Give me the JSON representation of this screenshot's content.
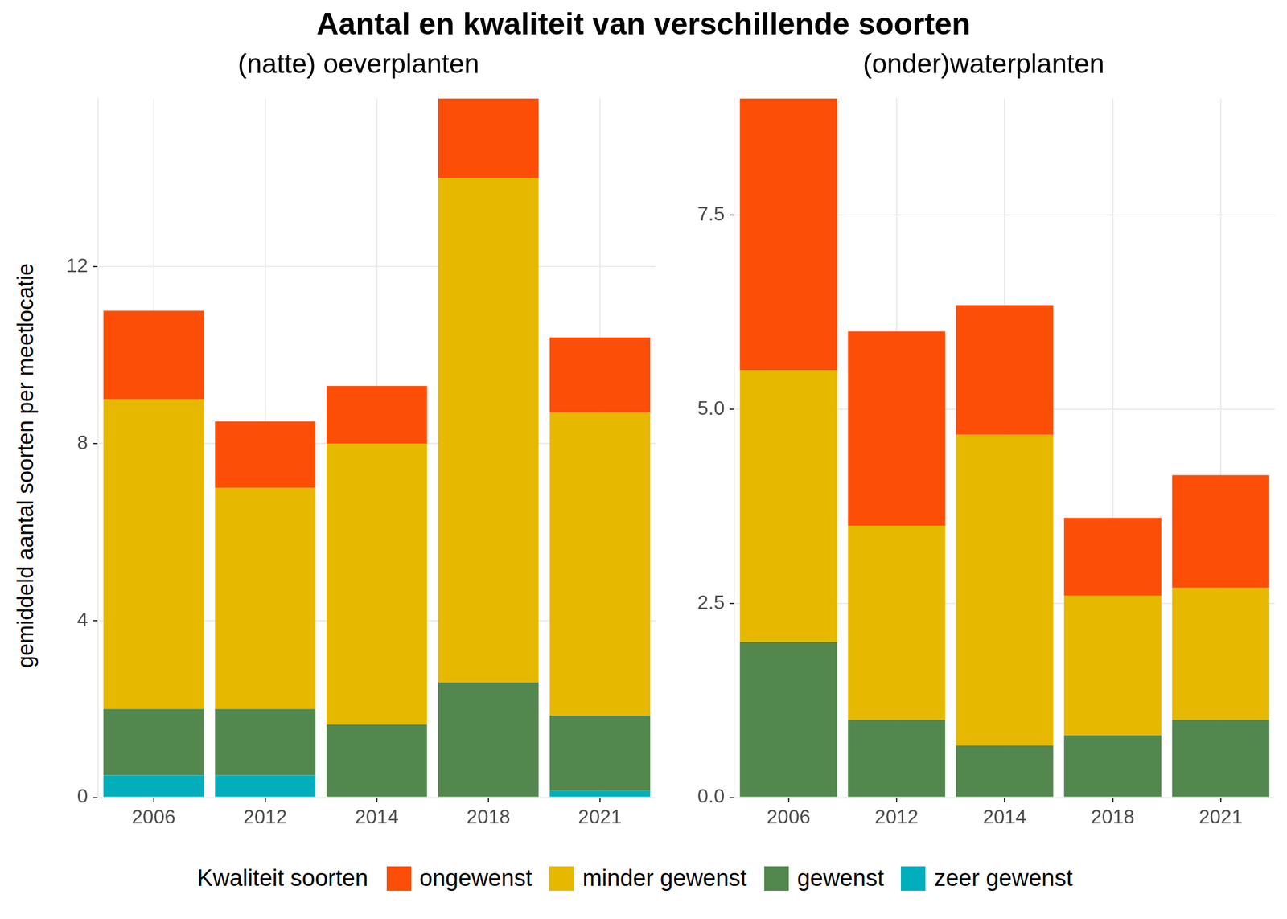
{
  "title": "Aantal en kwaliteit van verschillende soorten",
  "y_label": "gemiddeld aantal soorten per meetlocatie",
  "legend_title": "Kwaliteit soorten",
  "chart_data": [
    {
      "type": "bar",
      "title": "(natte) oeverplanten",
      "stacked": true,
      "grid": true,
      "categories": [
        "2006",
        "2012",
        "2014",
        "2018",
        "2021"
      ],
      "series": [
        {
          "name": "zeer gewenst",
          "color": "#00AFBB",
          "values": [
            0.5,
            0.5,
            0,
            0,
            0.15
          ]
        },
        {
          "name": "gewenst",
          "color": "#52874E",
          "values": [
            1.5,
            1.5,
            1.65,
            2.6,
            1.7
          ]
        },
        {
          "name": "minder gewenst",
          "color": "#E7B800",
          "values": [
            7.0,
            5.0,
            6.35,
            11.4,
            6.85
          ]
        },
        {
          "name": "ongewenst",
          "color": "#FC4E07",
          "values": [
            2.0,
            1.5,
            1.3,
            1.8,
            1.7
          ]
        }
      ],
      "ylim": [
        0,
        15.8
      ],
      "yticks": [
        0,
        4,
        8,
        12
      ]
    },
    {
      "type": "bar",
      "title": "(onder)waterplanten",
      "stacked": true,
      "grid": true,
      "categories": [
        "2006",
        "2012",
        "2014",
        "2018",
        "2021"
      ],
      "series": [
        {
          "name": "zeer gewenst",
          "color": "#00AFBB",
          "values": [
            0,
            0,
            0,
            0,
            0
          ]
        },
        {
          "name": "gewenst",
          "color": "#52874E",
          "values": [
            2.0,
            1.0,
            0.67,
            0.8,
            1.0
          ]
        },
        {
          "name": "minder gewenst",
          "color": "#E7B800",
          "values": [
            3.5,
            2.5,
            4.0,
            1.8,
            1.7
          ]
        },
        {
          "name": "ongewenst",
          "color": "#FC4E07",
          "values": [
            3.5,
            2.5,
            1.67,
            1.0,
            1.45
          ]
        }
      ],
      "ylim": [
        0,
        9
      ],
      "yticks": [
        {
          "value": 0,
          "label": "0.0"
        },
        2.5,
        {
          "value": 5,
          "label": "5.0"
        },
        7.5
      ]
    }
  ]
}
